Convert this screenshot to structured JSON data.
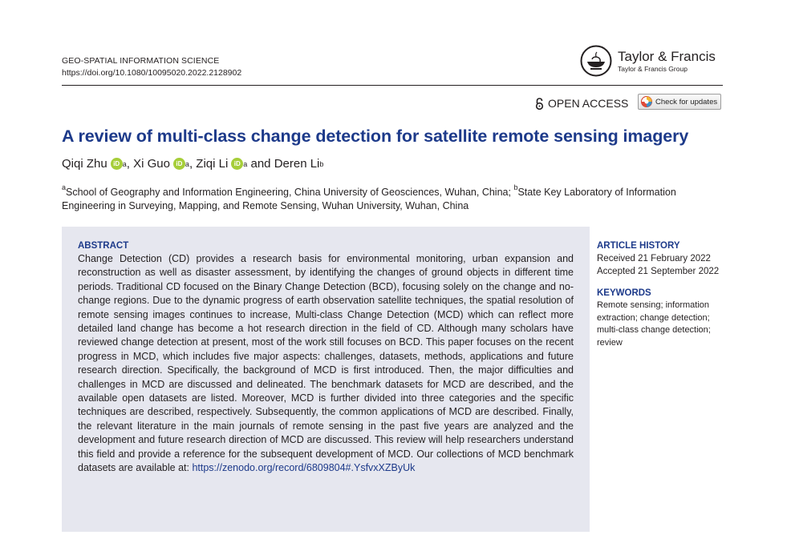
{
  "journal": {
    "name": "GEO-SPATIAL INFORMATION SCIENCE",
    "doi": "https://doi.org/10.1080/10095020.2022.2128902"
  },
  "publisher": {
    "name": "Taylor & Francis",
    "group": "Taylor & Francis Group",
    "logo_icon": "lamp-logo-icon"
  },
  "access": {
    "label": "OPEN ACCESS",
    "icon": "open-lock-icon",
    "check_updates": "Check for updates"
  },
  "title": "A review of multi-class change detection for satellite remote sensing imagery",
  "authors": [
    {
      "name": "Qiqi Zhu",
      "sup": "a",
      "orcid": true
    },
    {
      "name": "Xi Guo",
      "sup": "a",
      "orcid": true
    },
    {
      "name": "Ziqi Li",
      "sup": "a",
      "orcid": true
    },
    {
      "name": "Deren Li",
      "sup": "b",
      "orcid": false
    }
  ],
  "author_separators": [
    ", ",
    ", ",
    " and "
  ],
  "affiliations": {
    "a_sup": "a",
    "a_text": "School of Geography and Information Engineering, China University of Geosciences, Wuhan, China; ",
    "b_sup": "b",
    "b_text": "State Key Laboratory of Information Engineering in Surveying, Mapping, and Remote Sensing, Wuhan University, Wuhan, China"
  },
  "abstract": {
    "heading": "ABSTRACT",
    "text": "Change Detection (CD) provides a research basis for environmental monitoring, urban expansion and reconstruction as well as disaster assessment, by identifying the changes of ground objects in different time periods. Traditional CD focused on the Binary Change Detection (BCD), focusing solely on the change and no-change regions. Due to the dynamic progress of earth observation satellite techniques, the spatial resolution of remote sensing images continues to increase, Multi-class Change Detection (MCD) which can reflect more detailed land change has become a hot research direction in the field of CD. Although many scholars have reviewed change detection at present, most of the work still focuses on BCD. This paper focuses on the recent progress in MCD, which includes five major aspects: challenges, datasets, methods, applications and future research direction. Specifically, the background of MCD is first introduced. Then, the major difficulties and challenges in MCD are discussed and delineated. The benchmark datasets for MCD are described, and the available open datasets are listed. Moreover, MCD is further divided into three categories and the specific techniques are described, respectively. Subsequently, the common applications of MCD are described. Finally, the relevant literature in the main journals of remote sensing in the past five years are analyzed and the development and future research direction of MCD are discussed. This review will help researchers understand this field and provide a reference for the subsequent development of MCD. Our collections of MCD benchmark datasets are available at: ",
    "link": "https://zenodo.org/record/6809804#.YsfvxXZByUk"
  },
  "history": {
    "heading": "ARTICLE HISTORY",
    "received": "Received 21 February 2022",
    "accepted": "Accepted 21 September 2022"
  },
  "keywords": {
    "heading": "KEYWORDS",
    "text": "Remote sensing; information extraction; change detection; multi-class change detection; review"
  },
  "colors": {
    "title_blue": "#1d3a8a",
    "abstract_bg": "#e6e7ef",
    "orcid_green": "#a6ce39"
  }
}
